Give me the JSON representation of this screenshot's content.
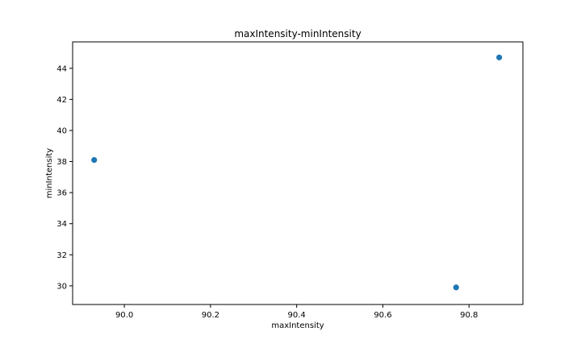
{
  "chart_data": {
    "type": "scatter",
    "title": "maxIntensity-minIntensity",
    "xlabel": "maxIntensity",
    "ylabel": "minIntensity",
    "xlim": [
      89.88,
      90.925
    ],
    "ylim": [
      28.8,
      45.7
    ],
    "xticks": [
      {
        "value": 90.0,
        "label": "90.0"
      },
      {
        "value": 90.2,
        "label": "90.2"
      },
      {
        "value": 90.4,
        "label": "90.4"
      },
      {
        "value": 90.6,
        "label": "90.6"
      },
      {
        "value": 90.8,
        "label": "90.8"
      }
    ],
    "yticks": [
      {
        "value": 30,
        "label": "30"
      },
      {
        "value": 32,
        "label": "32"
      },
      {
        "value": 34,
        "label": "34"
      },
      {
        "value": 36,
        "label": "36"
      },
      {
        "value": 38,
        "label": "38"
      },
      {
        "value": 40,
        "label": "40"
      },
      {
        "value": 42,
        "label": "42"
      },
      {
        "value": 44,
        "label": "44"
      }
    ],
    "grid": false,
    "legend": "none",
    "points": [
      {
        "x": 89.93,
        "y": 38.1
      },
      {
        "x": 90.77,
        "y": 29.9
      },
      {
        "x": 90.87,
        "y": 44.7
      }
    ],
    "marker_color": "#1f77b4"
  }
}
